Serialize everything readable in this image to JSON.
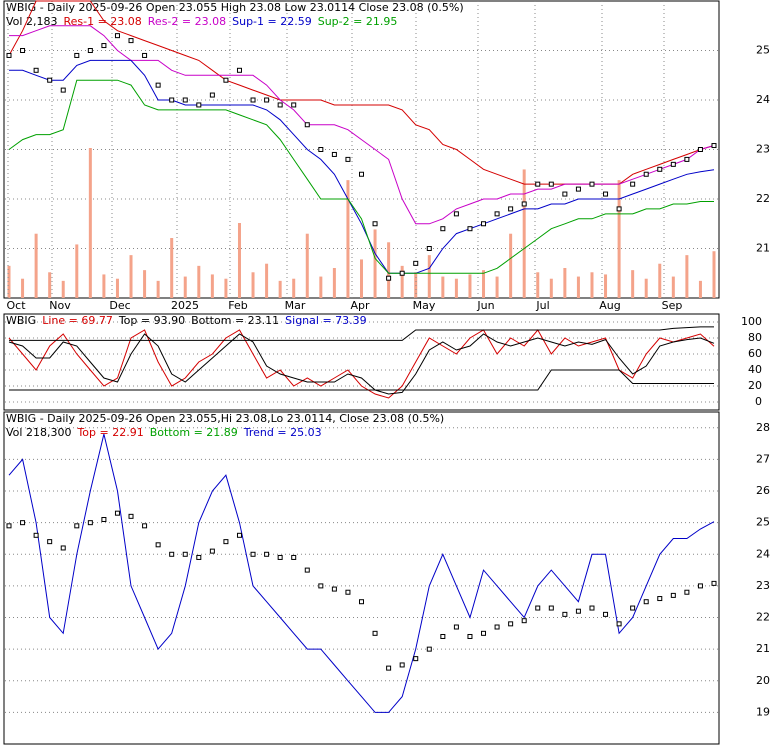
{
  "chart_data": [
    {
      "type": "price",
      "header": "WBIG - Daily 2025-09-26 Open 23.055  High 23.08  Low 23.0114  Close 23.08 (0.5%)",
      "legend": [
        "Vol 2,183",
        "Res-1 = 23.08",
        "Res-2 = 23.08",
        "Sup-1 = 22.59",
        "Sup-2 = 21.95"
      ],
      "x_labels": [
        "Oct",
        "Nov",
        "Dec",
        "2025",
        "Feb",
        "Mar",
        "Apr",
        "May",
        "Jun",
        "Jul",
        "Aug",
        "Sep"
      ],
      "ylim": [
        20,
        26
      ],
      "yticks": [
        21,
        22,
        23,
        24,
        25
      ],
      "close": [
        24.9,
        25.0,
        24.6,
        24.4,
        24.2,
        24.9,
        25.0,
        25.1,
        25.3,
        25.2,
        24.9,
        24.3,
        24.0,
        24.0,
        23.9,
        24.1,
        24.4,
        24.6,
        24.0,
        24.0,
        23.9,
        23.9,
        23.5,
        23.0,
        22.9,
        22.8,
        22.5,
        21.5,
        20.4,
        20.5,
        20.7,
        21.0,
        21.4,
        21.7,
        21.4,
        21.5,
        21.7,
        21.8,
        21.9,
        22.3,
        22.3,
        22.1,
        22.2,
        22.3,
        22.1,
        21.8,
        22.3,
        22.5,
        22.6,
        22.7,
        22.8,
        23.0,
        23.08
      ],
      "volume": [
        1500,
        900,
        3000,
        1200,
        800,
        2500,
        7000,
        1100,
        900,
        2000,
        1300,
        800,
        2800,
        1000,
        1500,
        1100,
        900,
        3500,
        1200,
        1600,
        800,
        900,
        3000,
        1000,
        1400,
        5500,
        1800,
        3200,
        2600,
        1500,
        1200,
        2000,
        1000,
        900,
        1100,
        1300,
        1000,
        3000,
        6000,
        1200,
        900,
        1400,
        1000,
        1200,
        1100,
        5500,
        1300,
        900,
        1600,
        1000,
        2000,
        800,
        2183
      ],
      "series": [
        {
          "name": "Res-1",
          "color": "#d40000",
          "values": [
            24.9,
            25.4,
            26.0,
            26.0,
            26.0,
            26.0,
            26.0,
            25.6,
            25.4,
            25.3,
            25.2,
            25.1,
            25.0,
            24.9,
            24.8,
            24.6,
            24.4,
            24.3,
            24.2,
            24.1,
            24.0,
            24.0,
            24.0,
            24.0,
            23.9,
            23.9,
            23.9,
            23.9,
            23.9,
            23.8,
            23.5,
            23.4,
            23.1,
            23.0,
            22.8,
            22.6,
            22.5,
            22.4,
            22.3,
            22.3,
            22.3,
            22.3,
            22.3,
            22.3,
            22.3,
            22.3,
            22.5,
            22.6,
            22.7,
            22.8,
            22.9,
            23.0,
            23.08
          ]
        },
        {
          "name": "Res-2",
          "color": "#c800c8",
          "values": [
            25.3,
            25.3,
            25.4,
            25.5,
            25.5,
            25.5,
            25.5,
            25.3,
            25.0,
            24.8,
            24.8,
            24.8,
            24.6,
            24.5,
            24.5,
            24.5,
            24.5,
            24.5,
            24.5,
            24.3,
            24.0,
            23.8,
            23.5,
            23.5,
            23.5,
            23.4,
            23.2,
            23.0,
            22.8,
            22.0,
            21.5,
            21.5,
            21.6,
            21.8,
            21.9,
            22.0,
            22.0,
            22.1,
            22.1,
            22.2,
            22.2,
            22.3,
            22.3,
            22.3,
            22.3,
            22.3,
            22.4,
            22.5,
            22.6,
            22.7,
            22.8,
            23.0,
            23.08
          ]
        },
        {
          "name": "Sup-1",
          "color": "#0000c8",
          "values": [
            24.6,
            24.6,
            24.5,
            24.4,
            24.4,
            24.7,
            24.8,
            24.8,
            24.8,
            24.8,
            24.5,
            24.0,
            24.0,
            23.9,
            23.9,
            23.9,
            23.9,
            23.9,
            23.9,
            23.8,
            23.6,
            23.3,
            23.0,
            22.8,
            22.5,
            22.0,
            21.5,
            20.9,
            20.5,
            20.5,
            20.5,
            20.6,
            21.0,
            21.3,
            21.4,
            21.5,
            21.6,
            21.7,
            21.8,
            21.8,
            21.9,
            21.9,
            22.0,
            22.0,
            22.0,
            22.0,
            22.1,
            22.2,
            22.3,
            22.4,
            22.5,
            22.55,
            22.59
          ]
        },
        {
          "name": "Sup-2",
          "color": "#00a000",
          "values": [
            23.0,
            23.2,
            23.3,
            23.3,
            23.4,
            24.4,
            24.4,
            24.4,
            24.4,
            24.3,
            23.9,
            23.8,
            23.8,
            23.8,
            23.8,
            23.8,
            23.8,
            23.7,
            23.6,
            23.5,
            23.2,
            22.8,
            22.4,
            22.0,
            22.0,
            22.0,
            21.6,
            20.8,
            20.5,
            20.5,
            20.5,
            20.5,
            20.5,
            20.5,
            20.5,
            20.5,
            20.6,
            20.8,
            21.0,
            21.2,
            21.4,
            21.5,
            21.6,
            21.6,
            21.7,
            21.7,
            21.7,
            21.8,
            21.8,
            21.9,
            21.9,
            21.95,
            21.95
          ]
        }
      ]
    },
    {
      "type": "oscillator",
      "legend": [
        "WBIG",
        "Line = 69.77",
        "Top = 93.90",
        "Bottom = 23.11",
        "Signal = 73.39"
      ],
      "ylim": [
        -10,
        110
      ],
      "yticks": [
        0,
        20,
        40,
        60,
        80,
        100
      ],
      "series": [
        {
          "name": "Line",
          "color": "#d40000",
          "values": [
            80,
            60,
            40,
            70,
            85,
            60,
            40,
            20,
            30,
            80,
            90,
            50,
            20,
            30,
            50,
            60,
            80,
            90,
            60,
            30,
            40,
            20,
            30,
            20,
            30,
            40,
            20,
            10,
            5,
            20,
            50,
            80,
            70,
            60,
            80,
            90,
            60,
            80,
            70,
            90,
            60,
            80,
            70,
            75,
            80,
            40,
            30,
            60,
            80,
            75,
            80,
            85,
            69.77
          ]
        },
        {
          "name": "Signal",
          "color": "#000000",
          "values": [
            75,
            70,
            55,
            55,
            75,
            70,
            50,
            30,
            25,
            60,
            85,
            70,
            35,
            25,
            40,
            55,
            70,
            85,
            75,
            45,
            35,
            30,
            25,
            25,
            25,
            35,
            30,
            15,
            10,
            12,
            35,
            65,
            75,
            65,
            70,
            85,
            75,
            70,
            75,
            80,
            75,
            70,
            75,
            72,
            78,
            55,
            35,
            45,
            70,
            75,
            78,
            80,
            73.39
          ]
        },
        {
          "name": "Top",
          "color": "#000000",
          "values": [
            77,
            77,
            77,
            77,
            77,
            77,
            77,
            77,
            77,
            77,
            77,
            77,
            77,
            77,
            77,
            77,
            77,
            77,
            77,
            77,
            77,
            77,
            77,
            77,
            77,
            77,
            77,
            77,
            77,
            77,
            90,
            90,
            90,
            90,
            90,
            90,
            90,
            90,
            90,
            90,
            90,
            90,
            90,
            90,
            90,
            90,
            90,
            90,
            90,
            92,
            93,
            93.9,
            93.9
          ]
        },
        {
          "name": "Bottom",
          "color": "#000000",
          "values": [
            15,
            15,
            15,
            15,
            15,
            15,
            15,
            15,
            15,
            15,
            15,
            15,
            15,
            15,
            15,
            15,
            15,
            15,
            15,
            15,
            15,
            15,
            15,
            15,
            15,
            15,
            15,
            15,
            15,
            15,
            15,
            15,
            15,
            15,
            15,
            15,
            15,
            15,
            15,
            15,
            40,
            40,
            40,
            40,
            40,
            40,
            23.11,
            23.11,
            23.11,
            23.11,
            23.11,
            23.11,
            23.11
          ]
        }
      ]
    },
    {
      "type": "trend",
      "header": "WBIG - Daily 2025-09-26 Open 23.055,Hi 23.08,Lo 23.0114, Close 23.08 (0.5%)",
      "legend": [
        "Vol 218,300",
        "Top = 22.91",
        "Bottom = 21.89",
        "Trend = 25.03"
      ],
      "ylim": [
        18,
        28.5
      ],
      "yticks": [
        19,
        20,
        21,
        22,
        23,
        24,
        25,
        26,
        27,
        28
      ],
      "series": [
        {
          "name": "Trend",
          "color": "#0000c8",
          "values": [
            26.5,
            27,
            25,
            22,
            21.5,
            24,
            26,
            27.8,
            26,
            23,
            22,
            21,
            21.5,
            23,
            25,
            26,
            26.5,
            25,
            23,
            22.5,
            22,
            21.5,
            21,
            21,
            20.5,
            20,
            19.5,
            19,
            19,
            19.5,
            21,
            23,
            24,
            23,
            22,
            23.5,
            23,
            22.5,
            22,
            23,
            23.5,
            23,
            22.5,
            24,
            24,
            21.5,
            22,
            23,
            24,
            24.5,
            24.5,
            24.8,
            25.03
          ]
        }
      ]
    }
  ]
}
